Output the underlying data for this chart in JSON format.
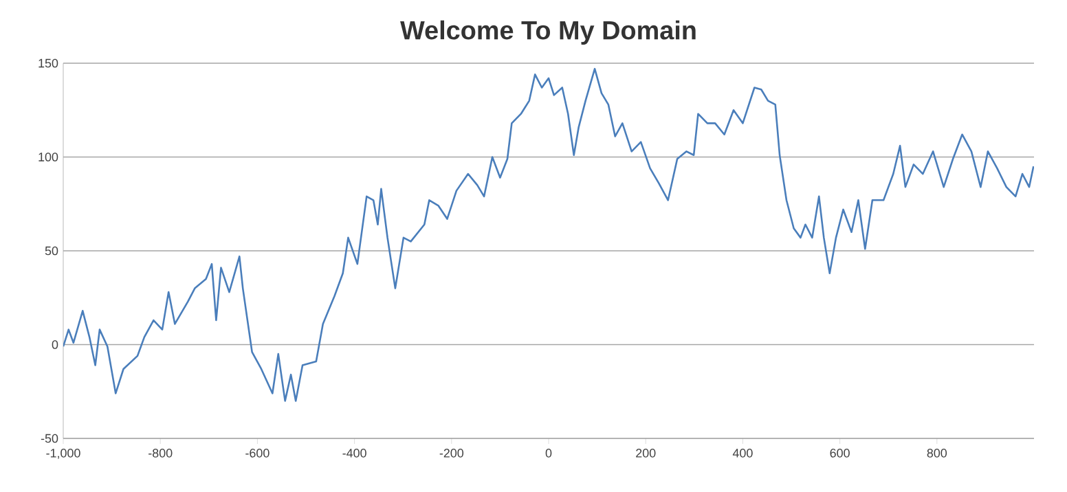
{
  "chart_data": {
    "type": "line",
    "title": "Welcome To My Domain",
    "xlim": [
      -1000,
      1000
    ],
    "ylim": [
      -50,
      150
    ],
    "xticks": [
      {
        "value": -1000,
        "label": "-1,000"
      },
      -800,
      -600,
      -400,
      -200,
      0,
      200,
      400,
      600,
      800
    ],
    "yticks": [
      -50,
      0,
      50,
      100,
      150
    ],
    "grid": "y",
    "marker": "none",
    "line_style": "solid",
    "series": [
      {
        "color": "#4a7ebb",
        "x": [
          -1000,
          -989,
          -979,
          -960,
          -946,
          -934,
          -925,
          -909,
          -892,
          -876,
          -847,
          -833,
          -814,
          -796,
          -783,
          -770,
          -743,
          -729,
          -706,
          -694,
          -685,
          -675,
          -658,
          -637,
          -630,
          -611,
          -592,
          -569,
          -557,
          -543,
          -531,
          -521,
          -507,
          -479,
          -465,
          -441,
          -424,
          -413,
          -394,
          -375,
          -361,
          -352,
          -345,
          -332,
          -316,
          -299,
          -284,
          -256,
          -246,
          -227,
          -209,
          -190,
          -166,
          -147,
          -133,
          -116,
          -100,
          -85,
          -76,
          -57,
          -40,
          -28,
          -14,
          0,
          11,
          28,
          40,
          52,
          62,
          76,
          95,
          109,
          123,
          137,
          152,
          171,
          190,
          209,
          227,
          246,
          265,
          284,
          299,
          308,
          327,
          343,
          362,
          381,
          400,
          424,
          438,
          452,
          467,
          476,
          490,
          505,
          519,
          529,
          543,
          557,
          567,
          579,
          592,
          607,
          624,
          638,
          652,
          667,
          690,
          710,
          724,
          735,
          752,
          771,
          792,
          814,
          833,
          852,
          871,
          890,
          905,
          924,
          943,
          962,
          976,
          990,
          999
        ],
        "values": [
          -1,
          8,
          1,
          18,
          4,
          -11,
          8,
          -1,
          -26,
          -13,
          -6,
          4,
          13,
          8,
          28,
          11,
          23,
          30,
          35,
          43,
          13,
          41,
          28,
          47,
          30,
          -4,
          -13,
          -26,
          -5,
          -30,
          -16,
          -30,
          -11,
          -9,
          11,
          26,
          38,
          57,
          43,
          79,
          77,
          64,
          83,
          57,
          30,
          57,
          55,
          64,
          77,
          74,
          67,
          82,
          91,
          85,
          79,
          100,
          89,
          99,
          118,
          123,
          130,
          144,
          137,
          142,
          133,
          137,
          123,
          101,
          116,
          130,
          147,
          134,
          128,
          111,
          118,
          103,
          108,
          94,
          86,
          77,
          99,
          103,
          101,
          123,
          118,
          118,
          112,
          125,
          118,
          137,
          136,
          130,
          128,
          101,
          77,
          62,
          57,
          64,
          57,
          79,
          57,
          38,
          57,
          72,
          60,
          77,
          51,
          77,
          77,
          91,
          106,
          84,
          96,
          91,
          103,
          84,
          99,
          112,
          103,
          84,
          103,
          94,
          84,
          79,
          91,
          84,
          95
        ]
      }
    ]
  }
}
